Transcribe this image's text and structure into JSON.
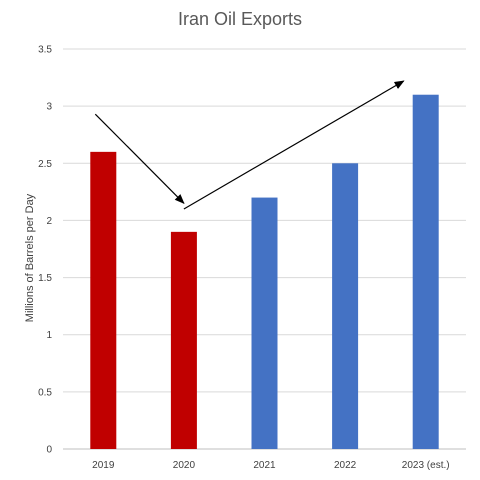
{
  "chart_data": {
    "type": "bar",
    "title": "Iran Oil Exports",
    "xlabel": "",
    "ylabel": "Millions of Barrels per Day",
    "categories": [
      "2019",
      "2020",
      "2021",
      "2022",
      "2023 (est.)"
    ],
    "values": [
      2.6,
      1.9,
      2.2,
      2.5,
      3.1
    ],
    "bar_colors": [
      "#C00000",
      "#C00000",
      "#4472C4",
      "#4472C4",
      "#4472C4"
    ],
    "ylim": [
      0,
      3.5
    ],
    "yticks": [
      0,
      0.5,
      1,
      1.5,
      2,
      2.5,
      3,
      3.5
    ],
    "ytick_labels": [
      "0",
      "0.5",
      "1",
      "1.5",
      "2",
      "2.5",
      "3",
      "3.5"
    ],
    "grid": true,
    "gridline_color": "#D9D9D9",
    "annotations": [
      {
        "type": "arrow",
        "from": [
          "2019",
          2.93
        ],
        "to": [
          "2020",
          2.15
        ]
      },
      {
        "type": "arrow",
        "from": [
          "2020",
          2.1
        ],
        "to": [
          "2023 (est.)",
          3.22
        ]
      }
    ]
  }
}
